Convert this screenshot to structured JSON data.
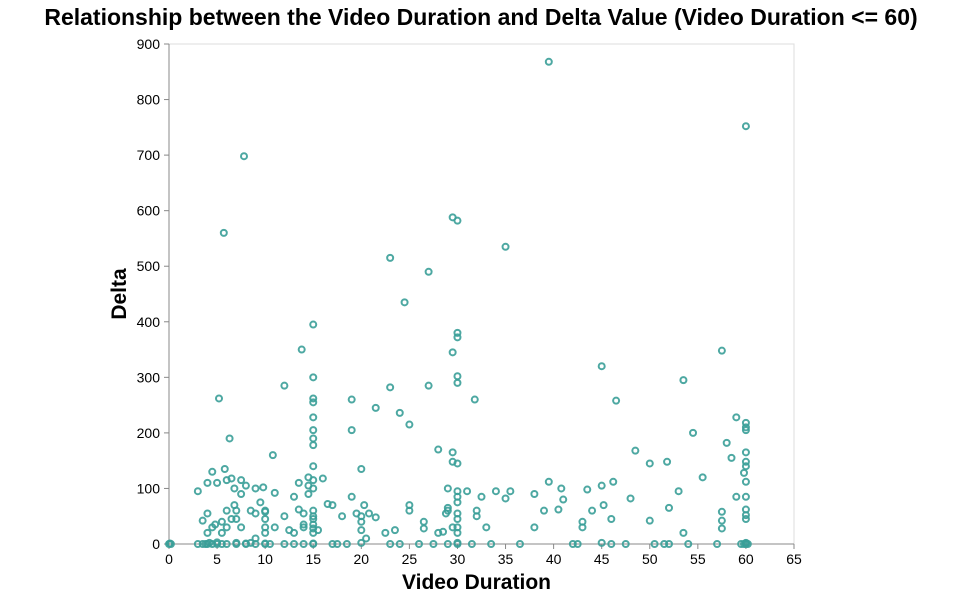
{
  "chart_data": {
    "type": "scatter",
    "title": "Relationship between the Video Duration and Delta Value (Video Duration <= 60)",
    "xlabel": "Video Duration",
    "ylabel": "Delta",
    "xlim": [
      0,
      65
    ],
    "ylim": [
      0,
      900
    ],
    "xticks": [
      0,
      5,
      10,
      15,
      20,
      25,
      30,
      35,
      40,
      45,
      50,
      55,
      60,
      65
    ],
    "yticks": [
      0,
      100,
      200,
      300,
      400,
      500,
      600,
      700,
      800,
      900
    ],
    "grid": false,
    "colors": {
      "point": "#3a9e98",
      "axis": "#888888"
    },
    "points": [
      [
        0,
        0
      ],
      [
        0.1,
        1
      ],
      [
        0.2,
        0
      ],
      [
        3,
        95
      ],
      [
        3,
        0
      ],
      [
        3.5,
        0
      ],
      [
        3.5,
        42
      ],
      [
        3.8,
        0
      ],
      [
        4,
        20
      ],
      [
        4,
        55
      ],
      [
        4,
        110
      ],
      [
        4,
        0
      ],
      [
        4.2,
        2
      ],
      [
        4.5,
        130
      ],
      [
        4.5,
        30
      ],
      [
        4.5,
        0
      ],
      [
        4.8,
        35
      ],
      [
        5,
        110
      ],
      [
        5,
        0
      ],
      [
        5,
        3
      ],
      [
        5.2,
        262
      ],
      [
        5.5,
        40
      ],
      [
        5.5,
        20
      ],
      [
        5.5,
        0
      ],
      [
        5.7,
        560
      ],
      [
        5.8,
        135
      ],
      [
        6,
        60
      ],
      [
        6,
        115
      ],
      [
        6,
        0
      ],
      [
        6,
        30
      ],
      [
        6.3,
        190
      ],
      [
        6.5,
        118
      ],
      [
        6.5,
        45
      ],
      [
        6.8,
        100
      ],
      [
        6.8,
        70
      ],
      [
        7,
        0
      ],
      [
        7,
        60
      ],
      [
        7,
        2
      ],
      [
        7,
        45
      ],
      [
        7.5,
        30
      ],
      [
        7.5,
        90
      ],
      [
        7.5,
        115
      ],
      [
        7.8,
        698
      ],
      [
        8,
        105
      ],
      [
        8,
        0
      ],
      [
        8,
        1
      ],
      [
        8.5,
        2
      ],
      [
        8.5,
        60
      ],
      [
        9,
        100
      ],
      [
        9,
        55
      ],
      [
        9,
        0
      ],
      [
        9,
        10
      ],
      [
        9.5,
        75
      ],
      [
        9.8,
        102
      ],
      [
        10,
        20
      ],
      [
        10,
        45
      ],
      [
        10,
        30
      ],
      [
        10,
        58
      ],
      [
        10,
        60
      ],
      [
        10,
        0
      ],
      [
        10,
        1
      ],
      [
        10.5,
        0
      ],
      [
        10.8,
        160
      ],
      [
        11,
        30
      ],
      [
        11,
        92
      ],
      [
        12,
        285
      ],
      [
        12,
        50
      ],
      [
        12,
        0
      ],
      [
        12.5,
        25
      ],
      [
        13,
        85
      ],
      [
        13,
        20
      ],
      [
        13,
        0
      ],
      [
        13.5,
        110
      ],
      [
        13.5,
        62
      ],
      [
        13.8,
        350
      ],
      [
        14,
        30
      ],
      [
        14,
        55
      ],
      [
        14,
        0
      ],
      [
        14,
        35
      ],
      [
        14.5,
        105
      ],
      [
        14.5,
        120
      ],
      [
        14.5,
        90
      ],
      [
        15,
        395
      ],
      [
        15,
        300
      ],
      [
        15,
        262
      ],
      [
        15,
        255
      ],
      [
        15,
        228
      ],
      [
        15,
        205
      ],
      [
        15,
        190
      ],
      [
        15,
        178
      ],
      [
        15,
        140
      ],
      [
        15,
        115
      ],
      [
        15,
        100
      ],
      [
        15,
        60
      ],
      [
        15,
        50
      ],
      [
        15,
        45
      ],
      [
        15,
        35
      ],
      [
        15,
        28
      ],
      [
        15,
        20
      ],
      [
        15,
        0
      ],
      [
        15,
        1
      ],
      [
        15.5,
        25
      ],
      [
        16,
        118
      ],
      [
        16.5,
        72
      ],
      [
        17,
        0
      ],
      [
        17,
        70
      ],
      [
        17.5,
        0
      ],
      [
        18,
        50
      ],
      [
        18.5,
        0
      ],
      [
        19,
        260
      ],
      [
        19,
        205
      ],
      [
        19,
        85
      ],
      [
        19.5,
        55
      ],
      [
        20,
        135
      ],
      [
        20,
        50
      ],
      [
        20,
        40
      ],
      [
        20,
        25
      ],
      [
        20,
        2
      ],
      [
        20.3,
        70
      ],
      [
        20.5,
        10
      ],
      [
        20.8,
        55
      ],
      [
        21.5,
        245
      ],
      [
        21.5,
        48
      ],
      [
        22.5,
        20
      ],
      [
        23,
        515
      ],
      [
        23,
        282
      ],
      [
        23,
        0
      ],
      [
        23.5,
        25
      ],
      [
        24,
        0
      ],
      [
        24,
        236
      ],
      [
        24.5,
        435
      ],
      [
        25,
        215
      ],
      [
        25,
        70
      ],
      [
        25,
        60
      ],
      [
        26,
        0
      ],
      [
        26.5,
        40
      ],
      [
        26.5,
        28
      ],
      [
        27,
        490
      ],
      [
        27,
        285
      ],
      [
        27.5,
        0
      ],
      [
        28,
        170
      ],
      [
        28,
        20
      ],
      [
        28.5,
        22
      ],
      [
        28.8,
        55
      ],
      [
        29,
        100
      ],
      [
        29,
        65
      ],
      [
        29,
        60
      ],
      [
        29,
        0
      ],
      [
        29.5,
        588
      ],
      [
        29.5,
        345
      ],
      [
        29.5,
        165
      ],
      [
        29.5,
        148
      ],
      [
        29.5,
        30
      ],
      [
        30,
        582
      ],
      [
        30,
        380
      ],
      [
        30,
        372
      ],
      [
        30,
        302
      ],
      [
        30,
        290
      ],
      [
        30,
        145
      ],
      [
        30,
        95
      ],
      [
        30,
        85
      ],
      [
        30,
        75
      ],
      [
        30,
        55
      ],
      [
        30,
        45
      ],
      [
        30,
        30
      ],
      [
        30,
        20
      ],
      [
        30,
        0
      ],
      [
        30,
        2
      ],
      [
        31,
        95
      ],
      [
        31.5,
        0
      ],
      [
        31.8,
        260
      ],
      [
        32,
        60
      ],
      [
        32,
        50
      ],
      [
        32.5,
        85
      ],
      [
        33,
        30
      ],
      [
        33.5,
        0
      ],
      [
        34,
        95
      ],
      [
        35,
        535
      ],
      [
        35,
        82
      ],
      [
        35.5,
        95
      ],
      [
        36.5,
        0
      ],
      [
        38,
        90
      ],
      [
        38,
        30
      ],
      [
        39,
        60
      ],
      [
        39.5,
        868
      ],
      [
        39.5,
        112
      ],
      [
        40.5,
        62
      ],
      [
        40.8,
        100
      ],
      [
        41,
        80
      ],
      [
        42,
        0
      ],
      [
        42.5,
        0
      ],
      [
        43,
        30
      ],
      [
        43,
        40
      ],
      [
        43.5,
        98
      ],
      [
        44,
        60
      ],
      [
        45,
        320
      ],
      [
        45,
        105
      ],
      [
        45,
        2
      ],
      [
        45.2,
        70
      ],
      [
        46,
        45
      ],
      [
        46,
        0
      ],
      [
        46.2,
        112
      ],
      [
        46.5,
        258
      ],
      [
        47.5,
        0
      ],
      [
        48,
        82
      ],
      [
        48.5,
        168
      ],
      [
        50,
        145
      ],
      [
        50,
        42
      ],
      [
        50.5,
        0
      ],
      [
        51.5,
        0
      ],
      [
        51.8,
        148
      ],
      [
        52,
        65
      ],
      [
        52,
        0
      ],
      [
        53,
        95
      ],
      [
        53.5,
        20
      ],
      [
        53.5,
        295
      ],
      [
        54,
        0
      ],
      [
        54.5,
        200
      ],
      [
        55.5,
        120
      ],
      [
        57,
        0
      ],
      [
        57.5,
        348
      ],
      [
        57.5,
        58
      ],
      [
        57.5,
        42
      ],
      [
        57.5,
        28
      ],
      [
        58,
        182
      ],
      [
        58.5,
        155
      ],
      [
        59,
        228
      ],
      [
        59,
        85
      ],
      [
        59.5,
        0
      ],
      [
        59.8,
        128
      ],
      [
        60,
        752
      ],
      [
        60,
        218
      ],
      [
        60,
        210
      ],
      [
        60,
        205
      ],
      [
        60,
        165
      ],
      [
        60,
        148
      ],
      [
        60,
        140
      ],
      [
        60,
        112
      ],
      [
        60,
        85
      ],
      [
        60,
        62
      ],
      [
        60,
        52
      ],
      [
        60,
        45
      ],
      [
        60,
        0
      ],
      [
        60,
        1
      ],
      [
        60,
        2
      ],
      [
        59.8,
        0
      ],
      [
        60.2,
        0
      ]
    ]
  }
}
